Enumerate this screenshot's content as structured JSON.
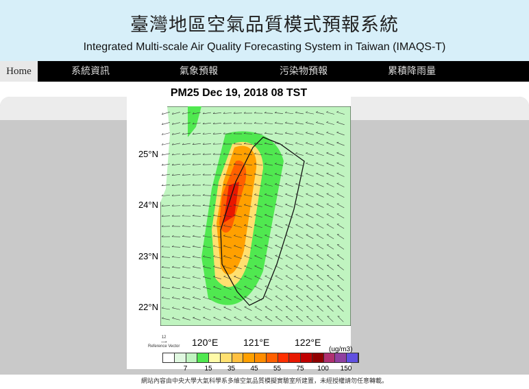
{
  "header": {
    "title_zh": "臺灣地區空氣品質模式預報系統",
    "title_en": "Integrated Multi-scale Air Quality Forecasting System in Taiwan (IMAQS-T)"
  },
  "nav": {
    "home": "Home",
    "items": [
      "系統資訊",
      "氣象預報",
      "污染物預報",
      "累積降雨量"
    ]
  },
  "figure": {
    "title": "PM25 Dec 19, 2018 08 TST",
    "lat_labels": [
      "25°N",
      "24°N",
      "23°N",
      "22°N"
    ],
    "lon_labels": [
      "120°E",
      "121°E",
      "122°E"
    ],
    "ref_vector_value": "12",
    "ref_vector_label": "Reference Vector",
    "units": "(ug/m3)",
    "colorbar_colors": [
      "#ffffff",
      "#e0f8e0",
      "#c0f4c0",
      "#50e850",
      "#fffaa8",
      "#ffe070",
      "#ffc040",
      "#ffa000",
      "#ff8c00",
      "#ff6000",
      "#ff3000",
      "#e81800",
      "#c00000",
      "#900000",
      "#b03070",
      "#9040a0",
      "#6050e0"
    ],
    "colorbar_labels": [
      "7",
      "15",
      "35",
      "45",
      "55",
      "75",
      "100",
      "150"
    ]
  },
  "footer": "網站內容由中央大學大氣科學系多維空氣品質模擬實驗室所建置，未經授權請勿任意轉載。"
}
